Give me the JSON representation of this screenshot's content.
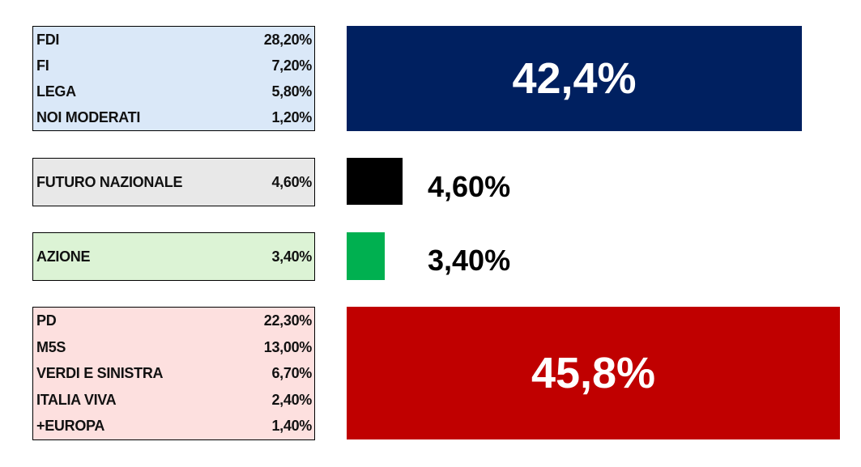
{
  "groups": [
    {
      "rows": [
        [
          "FDI",
          "28,20%"
        ],
        [
          "FI",
          "7,20%"
        ],
        [
          "LEGA",
          "5,80%"
        ],
        [
          "NOI MODERATI",
          "1,20%"
        ]
      ],
      "total": "42,4%"
    },
    {
      "rows": [
        [
          "FUTURO NAZIONALE",
          "4,60%"
        ]
      ],
      "total": "4,60%"
    },
    {
      "rows": [
        [
          "AZIONE",
          "3,40%"
        ]
      ],
      "total": "3,40%"
    },
    {
      "rows": [
        [
          "PD",
          "22,30%"
        ],
        [
          "M5S",
          "13,00%"
        ],
        [
          "VERDI E SINISTRA",
          "6,70%"
        ],
        [
          "ITALIA VIVA",
          "2,40%"
        ],
        [
          "+EUROPA",
          "1,40%"
        ]
      ],
      "total": "45,8%"
    }
  ]
}
